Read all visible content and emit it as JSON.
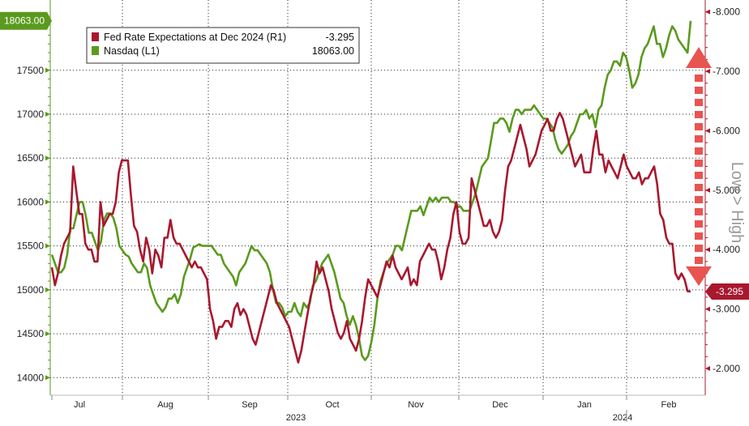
{
  "chart_data": {
    "type": "line",
    "legend": {
      "placement": "top-left",
      "entries": [
        {
          "label": "Fed Rate Expectations at Dec 2024 (R1)",
          "value": "-3.295",
          "color": "#a8182e"
        },
        {
          "label": "Nasdaq (L1)",
          "value": "18063.00",
          "color": "#5a9a1e"
        }
      ]
    },
    "left_axis": {
      "ylim": [
        13800,
        18300
      ],
      "ticks": [
        14000,
        14500,
        15000,
        15500,
        16000,
        16500,
        17000,
        17500
      ],
      "tick_labels": [
        "14000",
        "14500",
        "15000",
        "15500",
        "16000",
        "16500",
        "17000",
        "17500"
      ],
      "color": "#5a9a1e"
    },
    "right_axis": {
      "ylim": [
        -1.55,
        -8.2
      ],
      "ticks": [
        -2.0,
        -3.0,
        -4.0,
        -5.0,
        -6.0,
        -7.0,
        -8.0
      ],
      "tick_labels": [
        "-2.000",
        "-3.000",
        "-4.000",
        "-5.000",
        "-6.000",
        "-7.000",
        "-8.000"
      ],
      "color": "#a8182e",
      "side_label": "Low > High"
    },
    "x_axis": {
      "month_labels": [
        "Jul",
        "Aug",
        "Sep",
        "Oct",
        "Nov",
        "Dec",
        "Jan",
        "Feb"
      ],
      "year_labels": [
        "2023",
        "2024"
      ]
    },
    "grid": true,
    "last_value_badges": {
      "left": "18063.00",
      "right": "-3.295"
    },
    "series": [
      {
        "name": "Nasdaq (L1)",
        "axis": "left",
        "color": "#5a9a1e",
        "values": [
          15400,
          15300,
          15200,
          15200,
          15250,
          15400,
          15700,
          15700,
          15850,
          16000,
          16000,
          15850,
          15650,
          15650,
          15550,
          15450,
          15550,
          15800,
          15870,
          15870,
          15820,
          15700,
          15500,
          15450,
          15400,
          15380,
          15300,
          15250,
          15200,
          15200,
          15300,
          15250,
          15050,
          14950,
          14850,
          14800,
          14750,
          14800,
          14900,
          14900,
          14950,
          14850,
          14950,
          15150,
          15250,
          15350,
          15480,
          15500,
          15520,
          15500,
          15500,
          15500,
          15500,
          15450,
          15400,
          15400,
          15300,
          15250,
          15200,
          15150,
          15050,
          15200,
          15250,
          15300,
          15400,
          15500,
          15450,
          15450,
          15400,
          15350,
          15300,
          15200,
          15000,
          14850,
          14850,
          14800,
          14700,
          14750,
          14750,
          14850,
          14750,
          14700,
          14850,
          14800,
          14850,
          15050,
          15100,
          15200,
          15300,
          15350,
          15400,
          15300,
          15200,
          15050,
          14900,
          14850,
          14700,
          14600,
          14700,
          14600,
          14450,
          14250,
          14200,
          14250,
          14400,
          14600,
          14900,
          15100,
          15200,
          15300,
          15350,
          15400,
          15500,
          15500,
          15450,
          15600,
          15750,
          15900,
          15900,
          15900,
          15950,
          15850,
          15950,
          16050,
          16000,
          16050,
          16000,
          16050,
          16050,
          16050,
          16000,
          16000,
          15950,
          15950,
          15900,
          15900,
          15900,
          16000,
          16100,
          16250,
          16400,
          16450,
          16500,
          16700,
          16900,
          16900,
          16950,
          16950,
          16900,
          16800,
          16950,
          17050,
          17050,
          17000,
          17050,
          17050,
          17050,
          17100,
          17050,
          17000,
          16950,
          16950,
          16900,
          16850,
          16700,
          16600,
          16550,
          16600,
          16650,
          16750,
          16800,
          16900,
          17000,
          17000,
          17050,
          16950,
          17000,
          16850,
          17050,
          17100,
          17300,
          17450,
          17500,
          17600,
          17600,
          17550,
          17700,
          17650,
          17500,
          17300,
          17350,
          17450,
          17650,
          17750,
          17800,
          17900,
          18000,
          17800,
          17800,
          17650,
          17750,
          17900,
          18000,
          17950,
          17850,
          17800,
          17750,
          17700,
          18063
        ]
      },
      {
        "name": "Fed Rate Expectations at Dec 2024 (R1)",
        "axis": "right",
        "color": "#a8182e",
        "values": [
          -3.7,
          -3.4,
          -3.6,
          -3.9,
          -4.1,
          -4.2,
          -4.3,
          -5.4,
          -5.0,
          -4.6,
          -4.6,
          -4.1,
          -4.0,
          -4.0,
          -3.8,
          -3.8,
          -4.8,
          -4.4,
          -4.5,
          -4.6,
          -4.6,
          -4.8,
          -5.3,
          -5.5,
          -5.5,
          -5.5,
          -4.9,
          -4.4,
          -4.3,
          -4.0,
          -3.8,
          -4.2,
          -4.0,
          -3.6,
          -4.0,
          -3.9,
          -3.7,
          -4.2,
          -4.2,
          -4.5,
          -4.2,
          -4.1,
          -4.1,
          -4.0,
          -3.9,
          -3.8,
          -3.7,
          -3.8,
          -3.7,
          -3.7,
          -3.6,
          -3.5,
          -3.0,
          -2.8,
          -2.5,
          -2.7,
          -2.7,
          -2.8,
          -2.8,
          -2.7,
          -3.0,
          -3.1,
          -2.9,
          -3.0,
          -2.9,
          -2.7,
          -2.5,
          -2.4,
          -2.6,
          -2.8,
          -3.0,
          -3.2,
          -3.4,
          -3.3,
          -3.1,
          -3.0,
          -2.9,
          -2.8,
          -2.7,
          -2.5,
          -2.3,
          -2.1,
          -2.3,
          -2.6,
          -2.9,
          -3.2,
          -3.4,
          -3.8,
          -3.6,
          -3.7,
          -3.5,
          -3.3,
          -3.0,
          -2.8,
          -2.6,
          -2.5,
          -2.6,
          -2.8,
          -2.5,
          -2.4,
          -2.3,
          -2.5,
          -2.8,
          -3.2,
          -3.5,
          -3.4,
          -3.3,
          -3.2,
          -3.4,
          -3.6,
          -3.8,
          -3.7,
          -3.9,
          -3.7,
          -3.6,
          -3.5,
          -3.6,
          -3.7,
          -3.4,
          -3.5,
          -3.4,
          -3.8,
          -3.9,
          -4.0,
          -4.1,
          -4.0,
          -4.0,
          -3.8,
          -3.5,
          -3.7,
          -4.0,
          -4.2,
          -4.6,
          -4.8,
          -4.3,
          -4.1,
          -4.1,
          -4.2,
          -5.2,
          -5.0,
          -4.8,
          -4.6,
          -4.4,
          -4.4,
          -4.5,
          -4.3,
          -4.2,
          -4.3,
          -4.5,
          -5.0,
          -5.4,
          -5.5,
          -5.7,
          -5.9,
          -6.1,
          -5.9,
          -5.7,
          -5.4,
          -5.5,
          -5.6,
          -5.8,
          -6.0,
          -6.1,
          -6.2,
          -6.0,
          -6.0,
          -6.2,
          -6.3,
          -6.2,
          -6.0,
          -5.8,
          -5.6,
          -5.4,
          -5.5,
          -5.6,
          -5.3,
          -5.3,
          -5.3,
          -5.7,
          -6.0,
          -5.6,
          -5.6,
          -5.3,
          -5.5,
          -5.4,
          -5.3,
          -5.2,
          -5.4,
          -5.6,
          -5.4,
          -5.3,
          -5.2,
          -5.2,
          -5.3,
          -5.1,
          -5.2,
          -5.2,
          -5.3,
          -5.4,
          -5.1,
          -4.6,
          -4.5,
          -4.2,
          -4.1,
          -4.1,
          -3.6,
          -3.5,
          -3.6,
          -3.5,
          -3.3,
          -3.295
        ]
      }
    ]
  }
}
